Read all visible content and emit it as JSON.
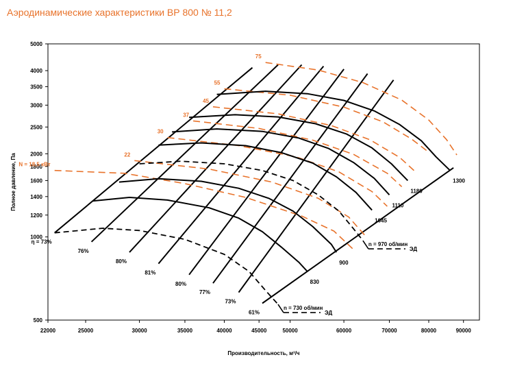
{
  "chart_data": {
    "type": "line",
    "title": "Аэродинамические характеристики ВР 800 № 11,2",
    "xlabel": "Производительность, м³/ч",
    "ylabel": "Полное давление, Па",
    "x_scale": "log",
    "y_scale": "log",
    "xlim": [
      22000,
      95000
    ],
    "ylim": [
      500,
      5000
    ],
    "x_ticks": [
      "22000",
      "25000",
      "30000",
      "35000",
      "40000",
      "45000",
      "50000",
      "60000",
      "70000",
      "80000",
      "90000"
    ],
    "y_ticks": [
      "500",
      "1000",
      "1200",
      "1400",
      "1600",
      "1800",
      "2000",
      "2500",
      "3000",
      "3500",
      "4000",
      "5000"
    ],
    "colors": {
      "speed_curves": "#000000",
      "power_lines": "#e8722a",
      "grid": "#000000"
    },
    "speed_curves": [
      {
        "name": "n = 730 об/мин",
        "rpm_label": "",
        "dashed": true,
        "points": [
          [
            22500,
            1035
          ],
          [
            26500,
            1075
          ],
          [
            30000,
            1055
          ],
          [
            35000,
            980
          ],
          [
            40000,
            865
          ],
          [
            43500,
            750
          ],
          [
            46000,
            640
          ],
          [
            48000,
            570
          ]
        ]
      },
      {
        "name": "",
        "rpm_label": "830",
        "dashed": false,
        "points": [
          [
            25600,
            1350
          ],
          [
            29000,
            1390
          ],
          [
            33000,
            1360
          ],
          [
            38000,
            1275
          ],
          [
            42000,
            1170
          ],
          [
            45500,
            1045
          ],
          [
            48500,
            920
          ],
          [
            51500,
            810
          ],
          [
            53000,
            750
          ]
        ]
      },
      {
        "name": "",
        "rpm_label": "900",
        "dashed": false,
        "points": [
          [
            28000,
            1580
          ],
          [
            32000,
            1625
          ],
          [
            37000,
            1590
          ],
          [
            42000,
            1500
          ],
          [
            46500,
            1380
          ],
          [
            50500,
            1240
          ],
          [
            54000,
            1090
          ],
          [
            57500,
            940
          ],
          [
            58500,
            880
          ]
        ]
      },
      {
        "name": "n = 970 об/мин",
        "rpm_label": "",
        "dashed": true,
        "points": [
          [
            30000,
            1840
          ],
          [
            34500,
            1880
          ],
          [
            40000,
            1840
          ],
          [
            45500,
            1740
          ],
          [
            50500,
            1600
          ],
          [
            55000,
            1420
          ],
          [
            59000,
            1240
          ],
          [
            62000,
            1070
          ],
          [
            64000,
            970
          ]
        ]
      },
      {
        "name": "",
        "rpm_label": "1045",
        "dashed": false,
        "points": [
          [
            32000,
            2150
          ],
          [
            37000,
            2190
          ],
          [
            43000,
            2140
          ],
          [
            48500,
            2020
          ],
          [
            54000,
            1850
          ],
          [
            58500,
            1650
          ],
          [
            62500,
            1450
          ],
          [
            66000,
            1250
          ]
        ]
      },
      {
        "name": "",
        "rpm_label": "1110",
        "dashed": false,
        "points": [
          [
            33500,
            2400
          ],
          [
            39000,
            2460
          ],
          [
            45500,
            2410
          ],
          [
            51500,
            2280
          ],
          [
            57000,
            2090
          ],
          [
            62000,
            1860
          ],
          [
            66500,
            1630
          ],
          [
            70000,
            1420
          ]
        ]
      },
      {
        "name": "",
        "rpm_label": "1180",
        "dashed": false,
        "points": [
          [
            35500,
            2710
          ],
          [
            41500,
            2770
          ],
          [
            48000,
            2720
          ],
          [
            54500,
            2570
          ],
          [
            60500,
            2360
          ],
          [
            66000,
            2100
          ],
          [
            70500,
            1840
          ],
          [
            74500,
            1600
          ]
        ]
      },
      {
        "name": "",
        "rpm_label": "1300",
        "dashed": false,
        "points": [
          [
            39000,
            3280
          ],
          [
            46000,
            3370
          ],
          [
            53000,
            3300
          ],
          [
            60000,
            3120
          ],
          [
            66500,
            2860
          ],
          [
            72500,
            2550
          ],
          [
            78000,
            2230
          ],
          [
            82000,
            1950
          ],
          [
            86000,
            1740
          ]
        ]
      }
    ],
    "efficiency_lines": [
      {
        "label": "η = 73%",
        "points": [
          [
            22500,
            1035
          ],
          [
            44000,
            4100
          ]
        ]
      },
      {
        "label": "76%",
        "points": [
          [
            25500,
            960
          ],
          [
            48000,
            4200
          ]
        ]
      },
      {
        "label": "80%",
        "points": [
          [
            29000,
            880
          ],
          [
            52000,
            4200
          ]
        ]
      },
      {
        "label": "81%",
        "points": [
          [
            32000,
            800
          ],
          [
            56000,
            4150
          ]
        ]
      },
      {
        "label": "80%",
        "points": [
          [
            35500,
            730
          ],
          [
            60000,
            4050
          ]
        ]
      },
      {
        "label": "77%",
        "points": [
          [
            38500,
            680
          ],
          [
            65000,
            3900
          ]
        ]
      },
      {
        "label": "73%",
        "points": [
          [
            42000,
            630
          ],
          [
            71000,
            3700
          ]
        ]
      },
      {
        "label": "61%",
        "points": [
          [
            45500,
            575
          ],
          [
            87000,
            1780
          ]
        ]
      }
    ],
    "power_lines": [
      {
        "label": "N = 18,5 кВт",
        "points": [
          [
            22500,
            1740
          ],
          [
            28500,
            1700
          ],
          [
            35000,
            1560
          ],
          [
            43000,
            1390
          ],
          [
            52000,
            1190
          ],
          [
            58000,
            1050
          ],
          [
            62000,
            900
          ]
        ]
      },
      {
        "label": "22",
        "points": [
          [
            29500,
            1890
          ],
          [
            38000,
            1760
          ],
          [
            47000,
            1580
          ],
          [
            55000,
            1380
          ],
          [
            61000,
            1180
          ],
          [
            64500,
            1010
          ]
        ]
      },
      {
        "label": "30",
        "points": [
          [
            33000,
            2290
          ],
          [
            42000,
            2140
          ],
          [
            51000,
            1950
          ],
          [
            59000,
            1720
          ],
          [
            66000,
            1460
          ],
          [
            69500,
            1290
          ]
        ]
      },
      {
        "label": "37",
        "points": [
          [
            36000,
            2630
          ],
          [
            45000,
            2470
          ],
          [
            54000,
            2240
          ],
          [
            62000,
            1990
          ],
          [
            69500,
            1700
          ],
          [
            73000,
            1520
          ]
        ]
      },
      {
        "label": "45",
        "points": [
          [
            38500,
            2960
          ],
          [
            48000,
            2790
          ],
          [
            57500,
            2530
          ],
          [
            65500,
            2250
          ],
          [
            72500,
            1940
          ],
          [
            76500,
            1720
          ]
        ]
      },
      {
        "label": "55",
        "points": [
          [
            40000,
            3440
          ],
          [
            50000,
            3260
          ],
          [
            60000,
            2950
          ],
          [
            68500,
            2610
          ],
          [
            75500,
            2260
          ],
          [
            79500,
            2050
          ]
        ]
      },
      {
        "label": "75",
        "points": [
          [
            46000,
            4280
          ],
          [
            55000,
            4020
          ],
          [
            64000,
            3620
          ],
          [
            73000,
            3130
          ],
          [
            80000,
            2650
          ],
          [
            85000,
            2250
          ],
          [
            88000,
            1980
          ]
        ]
      }
    ],
    "annotations": [
      {
        "label": "n = 970 об/мин",
        "motor": "ЭД"
      },
      {
        "label": "n = 730 об/мин",
        "motor": "ЭД"
      }
    ]
  }
}
